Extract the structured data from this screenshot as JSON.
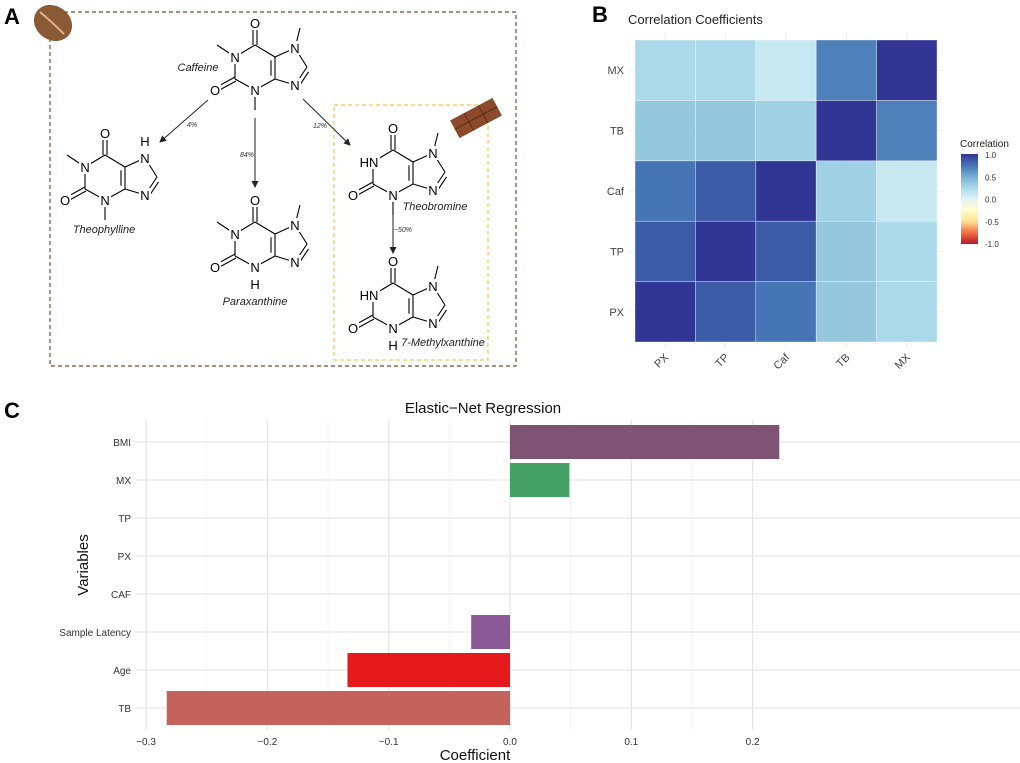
{
  "panel_labels": {
    "a": "A",
    "b": "B",
    "c": "C"
  },
  "panel_a": {
    "molecules": [
      {
        "name": "Caffeine",
        "n1": "N",
        "n1_methyl": true,
        "n3": "N",
        "n3_methyl": true,
        "n3_h": false,
        "n7": "N",
        "n7_methyl": true,
        "n7_h": false
      },
      {
        "name": "Theophylline",
        "n1": "N",
        "n1_methyl": true,
        "n3": "N",
        "n3_methyl": true,
        "n3_h": false,
        "n7": "N",
        "n7_methyl": false,
        "n7_h": true
      },
      {
        "name": "Paraxanthine",
        "n1": "N",
        "n1_methyl": true,
        "n3": "N",
        "n3_methyl": false,
        "n3_h": true,
        "n7": "N",
        "n7_methyl": true,
        "n7_h": false
      },
      {
        "name": "Theobromine",
        "n1": "HN",
        "n1_methyl": false,
        "n3": "N",
        "n3_methyl": true,
        "n3_h": false,
        "n7": "N",
        "n7_methyl": true,
        "n7_h": false
      },
      {
        "name": "7-Methylxanthine",
        "n1": "HN",
        "n1_methyl": false,
        "n3": "N",
        "n3_methyl": false,
        "n3_h": true,
        "n7": "N",
        "n7_methyl": true,
        "n7_h": false
      }
    ],
    "atom_labels": {
      "oxygen": "O",
      "nitrogen": "N",
      "hydrogen": "H"
    },
    "arrows": [
      {
        "from": "Caffeine",
        "to": "Theophylline",
        "label": "4%"
      },
      {
        "from": "Caffeine",
        "to": "Paraxanthine",
        "label": "84%"
      },
      {
        "from": "Caffeine",
        "to": "Theobromine",
        "label": "12%"
      },
      {
        "from": "Theobromine",
        "to": "7-Methylxanthine",
        "label": "~50%"
      }
    ],
    "icons": [
      "coffee-bean-icon",
      "chocolate-bar-icon"
    ],
    "colors": {
      "coffee_box": "#7a4a2a",
      "chocolate_box": "#f2c94c"
    }
  },
  "chart_data": [
    {
      "type": "heatmap",
      "title": "Correlation Coefficients",
      "x_categories": [
        "PX",
        "TP",
        "Caf",
        "TB",
        "MX"
      ],
      "y_categories": [
        "PX",
        "TP",
        "Caf",
        "TB",
        "MX"
      ],
      "values": [
        [
          1.0,
          0.85,
          0.75,
          0.35,
          0.25
        ],
        [
          0.85,
          1.0,
          0.85,
          0.35,
          0.25
        ],
        [
          0.75,
          0.85,
          1.0,
          0.3,
          0.12
        ],
        [
          0.35,
          0.35,
          0.3,
          1.0,
          0.7
        ],
        [
          0.25,
          0.25,
          0.12,
          0.7,
          1.0
        ]
      ],
      "legend": {
        "title": "Correlation",
        "ticks": [
          "1.0",
          "0.5",
          "0.0",
          "-0.5",
          "-1.0"
        ],
        "range": [
          -1,
          1
        ],
        "placement": "right"
      },
      "colorscale": [
        "#b2182b",
        "#f46d43",
        "#fee090",
        "#ffffcc",
        "#e0f3f8",
        "#abd9e9",
        "#74add1",
        "#4575b4",
        "#313695"
      ]
    },
    {
      "type": "bar",
      "orientation": "horizontal",
      "title": "Elastic−Net Regression",
      "xlabel": "Coefficient",
      "ylabel": "Variables",
      "categories": [
        "BMI",
        "MX",
        "TP",
        "PX",
        "CAF",
        "Sample Latency",
        "Age",
        "TB"
      ],
      "values": [
        0.222,
        0.049,
        0,
        0,
        0,
        -0.032,
        -0.134,
        -0.283
      ],
      "colors": [
        "#7e5373",
        "#45a165",
        "#999999",
        "#999999",
        "#999999",
        "#8b5a96",
        "#e41a1c",
        "#c4625c"
      ],
      "xlim": [
        -0.3,
        0.235
      ],
      "xticks": [
        "−0.3",
        "−0.2",
        "−0.1",
        "0.0",
        "0.1",
        "0.2"
      ],
      "xtick_values": [
        -0.3,
        -0.2,
        -0.1,
        0,
        0.1,
        0.2
      ],
      "grid": true
    }
  ]
}
